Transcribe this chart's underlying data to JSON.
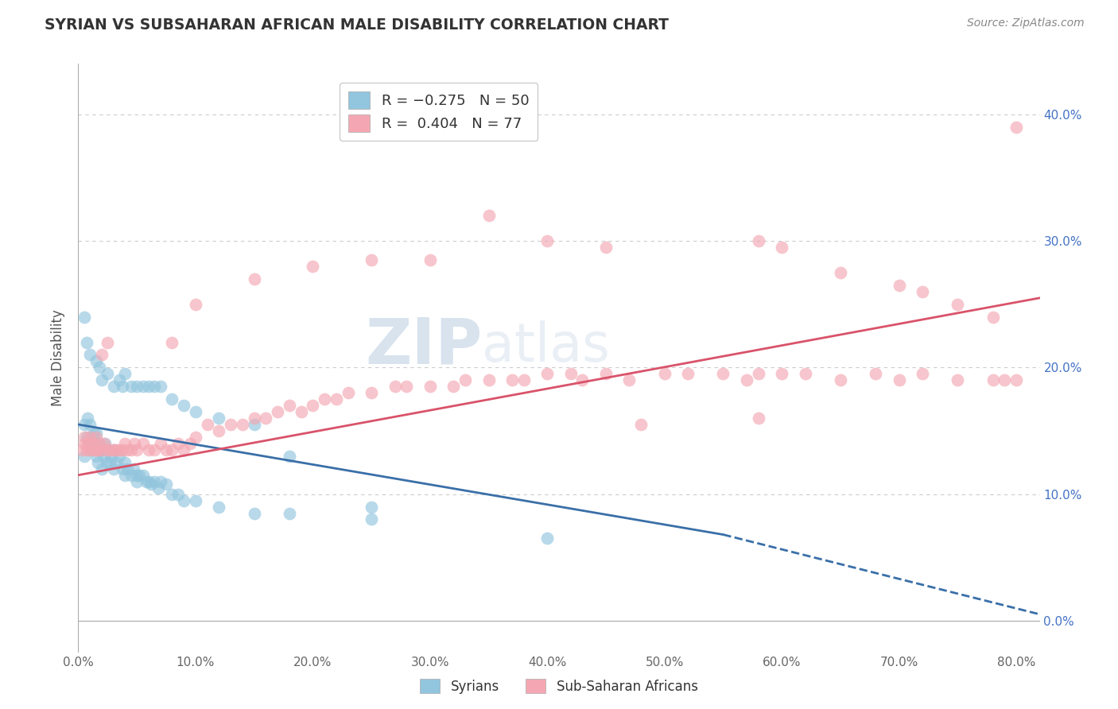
{
  "title": "SYRIAN VS SUBSAHARAN AFRICAN MALE DISABILITY CORRELATION CHART",
  "source": "Source: ZipAtlas.com",
  "ylabel": "Male Disability",
  "legend_labels": [
    "Syrians",
    "Sub-Saharan Africans"
  ],
  "blue_R": -0.275,
  "blue_N": 50,
  "pink_R": 0.404,
  "pink_N": 77,
  "blue_color": "#92c5de",
  "pink_color": "#f4a7b2",
  "blue_line_color": "#3a6fa8",
  "pink_line_color": "#d9536a",
  "watermark_zip": "ZIP",
  "watermark_atlas": "atlas",
  "xlim": [
    0.0,
    0.82
  ],
  "ylim": [
    -0.025,
    0.44
  ],
  "x_ticks": [
    0.0,
    0.1,
    0.2,
    0.3,
    0.4,
    0.5,
    0.6,
    0.7,
    0.8
  ],
  "y_ticks": [
    0.0,
    0.1,
    0.2,
    0.3,
    0.4
  ],
  "blue_scatter_x": [
    0.005,
    0.005,
    0.007,
    0.008,
    0.01,
    0.01,
    0.012,
    0.013,
    0.015,
    0.015,
    0.017,
    0.018,
    0.02,
    0.02,
    0.022,
    0.023,
    0.024,
    0.025,
    0.027,
    0.028,
    0.03,
    0.03,
    0.032,
    0.035,
    0.038,
    0.04,
    0.04,
    0.042,
    0.045,
    0.047,
    0.05,
    0.05,
    0.052,
    0.055,
    0.058,
    0.06,
    0.062,
    0.065,
    0.068,
    0.07,
    0.075,
    0.08,
    0.085,
    0.09,
    0.1,
    0.12,
    0.15,
    0.18,
    0.25,
    0.4
  ],
  "blue_scatter_y": [
    0.13,
    0.155,
    0.145,
    0.16,
    0.14,
    0.155,
    0.135,
    0.148,
    0.13,
    0.148,
    0.125,
    0.14,
    0.12,
    0.135,
    0.13,
    0.14,
    0.125,
    0.135,
    0.125,
    0.13,
    0.12,
    0.135,
    0.125,
    0.13,
    0.12,
    0.125,
    0.115,
    0.12,
    0.115,
    0.12,
    0.115,
    0.11,
    0.115,
    0.115,
    0.11,
    0.11,
    0.108,
    0.11,
    0.105,
    0.11,
    0.108,
    0.1,
    0.1,
    0.095,
    0.095,
    0.09,
    0.085,
    0.085,
    0.08,
    0.065
  ],
  "blue_extra_x": [
    0.005,
    0.007,
    0.01,
    0.015,
    0.018,
    0.02,
    0.025,
    0.03,
    0.035,
    0.038,
    0.04,
    0.045,
    0.05,
    0.055,
    0.06,
    0.065,
    0.07,
    0.08,
    0.09,
    0.1,
    0.12,
    0.15,
    0.18,
    0.25
  ],
  "blue_extra_y": [
    0.24,
    0.22,
    0.21,
    0.205,
    0.2,
    0.19,
    0.195,
    0.185,
    0.19,
    0.185,
    0.195,
    0.185,
    0.185,
    0.185,
    0.185,
    0.185,
    0.185,
    0.175,
    0.17,
    0.165,
    0.16,
    0.155,
    0.13,
    0.09
  ],
  "pink_scatter_x": [
    0.003,
    0.005,
    0.007,
    0.008,
    0.01,
    0.012,
    0.013,
    0.015,
    0.017,
    0.018,
    0.02,
    0.022,
    0.025,
    0.027,
    0.03,
    0.032,
    0.035,
    0.038,
    0.04,
    0.042,
    0.045,
    0.048,
    0.05,
    0.055,
    0.06,
    0.065,
    0.07,
    0.075,
    0.08,
    0.085,
    0.09,
    0.095,
    0.1,
    0.11,
    0.12,
    0.13,
    0.14,
    0.15,
    0.16,
    0.17,
    0.18,
    0.19,
    0.2,
    0.21,
    0.22,
    0.23,
    0.25,
    0.27,
    0.28,
    0.3,
    0.32,
    0.33,
    0.35,
    0.37,
    0.38,
    0.4,
    0.42,
    0.43,
    0.45,
    0.47,
    0.5,
    0.52,
    0.55,
    0.57,
    0.58,
    0.6,
    0.62,
    0.65,
    0.68,
    0.7,
    0.72,
    0.75,
    0.78,
    0.79,
    0.8,
    0.58,
    0.48
  ],
  "pink_scatter_y": [
    0.135,
    0.14,
    0.135,
    0.14,
    0.135,
    0.14,
    0.135,
    0.135,
    0.135,
    0.14,
    0.135,
    0.14,
    0.135,
    0.135,
    0.135,
    0.135,
    0.135,
    0.135,
    0.14,
    0.135,
    0.135,
    0.14,
    0.135,
    0.14,
    0.135,
    0.135,
    0.14,
    0.135,
    0.135,
    0.14,
    0.135,
    0.14,
    0.145,
    0.155,
    0.15,
    0.155,
    0.155,
    0.16,
    0.16,
    0.165,
    0.17,
    0.165,
    0.17,
    0.175,
    0.175,
    0.18,
    0.18,
    0.185,
    0.185,
    0.185,
    0.185,
    0.19,
    0.19,
    0.19,
    0.19,
    0.195,
    0.195,
    0.19,
    0.195,
    0.19,
    0.195,
    0.195,
    0.195,
    0.19,
    0.195,
    0.195,
    0.195,
    0.19,
    0.195,
    0.19,
    0.195,
    0.19,
    0.19,
    0.19,
    0.19,
    0.16,
    0.155
  ],
  "pink_extra_x": [
    0.005,
    0.01,
    0.015,
    0.02,
    0.025,
    0.08,
    0.1,
    0.15,
    0.2,
    0.25,
    0.3,
    0.35,
    0.4,
    0.45,
    0.58,
    0.6,
    0.65,
    0.7,
    0.72,
    0.75,
    0.78,
    0.8
  ],
  "pink_extra_y": [
    0.145,
    0.145,
    0.145,
    0.21,
    0.22,
    0.22,
    0.25,
    0.27,
    0.28,
    0.285,
    0.285,
    0.32,
    0.3,
    0.295,
    0.3,
    0.295,
    0.275,
    0.265,
    0.26,
    0.25,
    0.24,
    0.39
  ],
  "background_color": "#ffffff",
  "grid_color": "#cccccc"
}
